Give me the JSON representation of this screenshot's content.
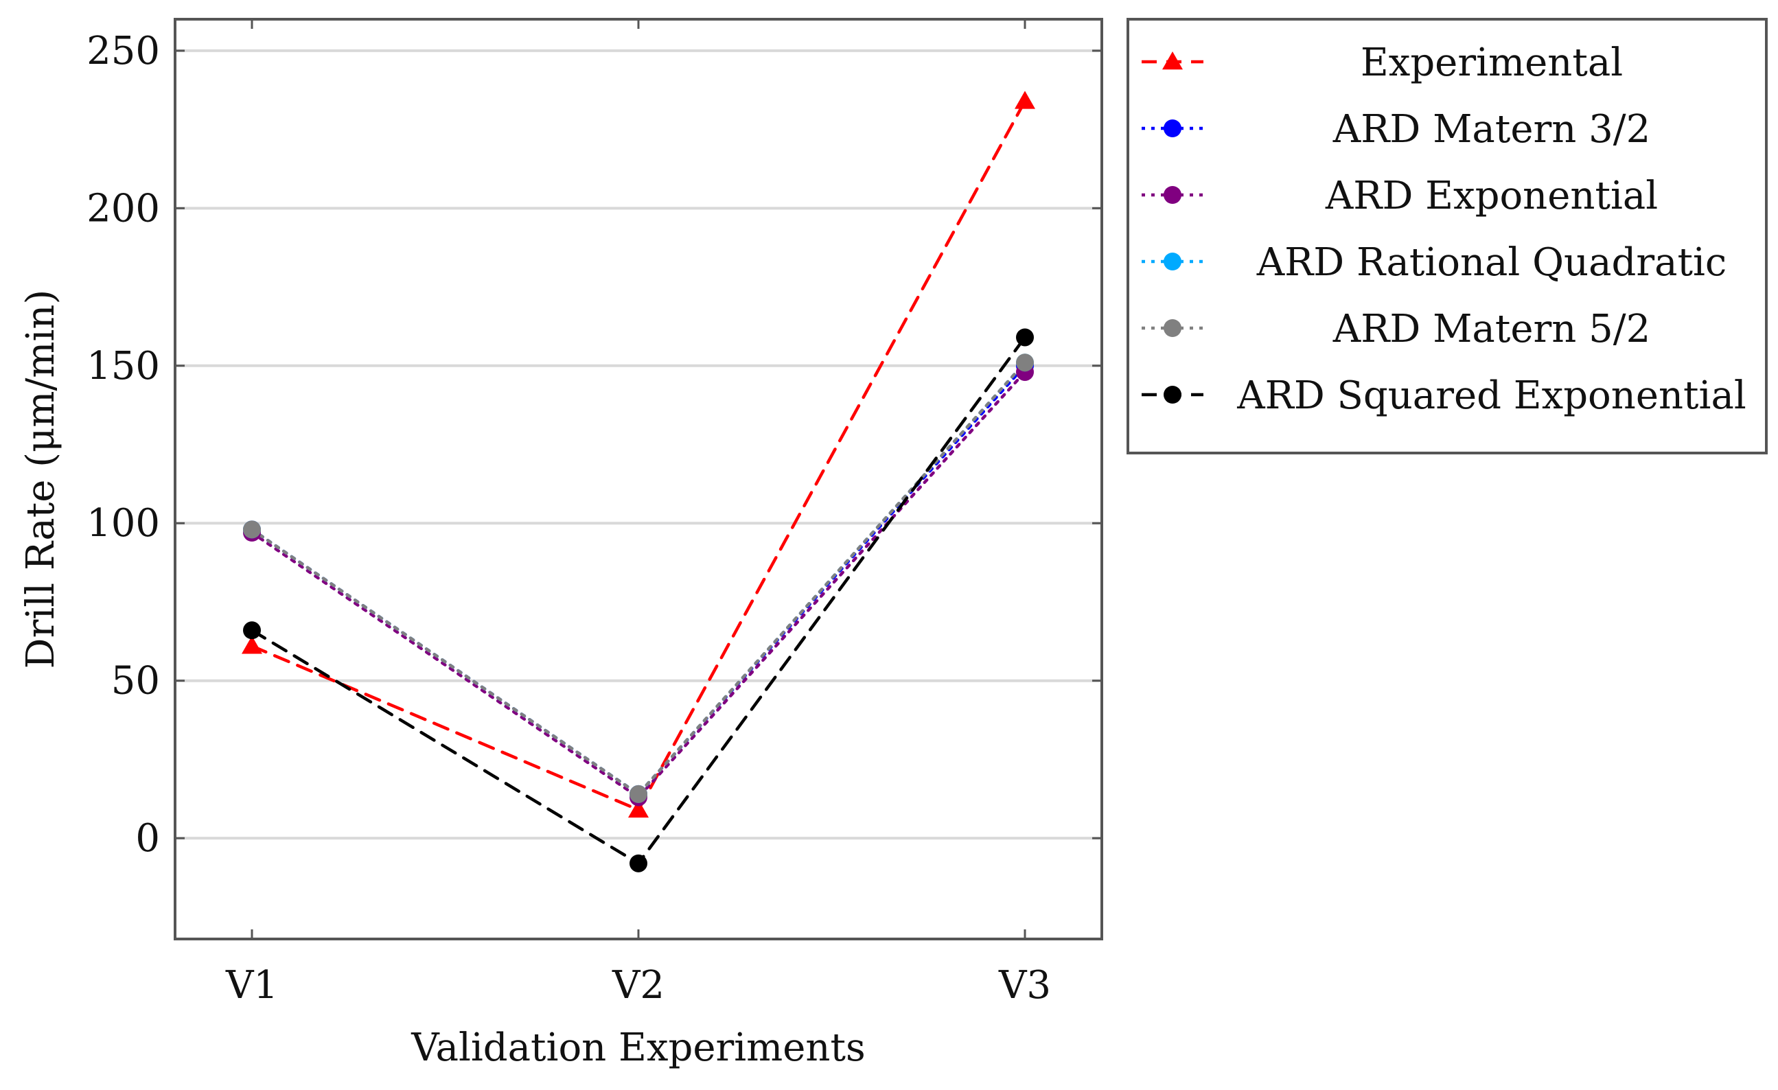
{
  "chart_data": {
    "type": "line",
    "categories": [
      "V1",
      "V2",
      "V3"
    ],
    "xlabel": "Validation Experiments",
    "ylabel": "Drill Rate (μm/min)",
    "ylim": [
      -32,
      260
    ],
    "yticks": [
      0,
      50,
      100,
      150,
      200,
      250
    ],
    "grid": "horizontal",
    "legend_position": "outside-right-top",
    "series": [
      {
        "name": "Experimental",
        "values": [
          61,
          9,
          234
        ],
        "color": "#ff0000",
        "dash": "dashed",
        "marker": "triangle"
      },
      {
        "name": "ARD Matern 3/2",
        "values": [
          98,
          14,
          150
        ],
        "color": "#0000ff",
        "dash": "dotted",
        "marker": "circle"
      },
      {
        "name": "ARD Exponential",
        "values": [
          97,
          13,
          148
        ],
        "color": "#800080",
        "dash": "dotted",
        "marker": "circle"
      },
      {
        "name": "ARD Rational Quadratic",
        "values": [
          98,
          14,
          151
        ],
        "color": "#00aaff",
        "dash": "dotted",
        "marker": "circle"
      },
      {
        "name": "ARD Matern 5/2",
        "values": [
          98,
          14,
          151
        ],
        "color": "#808080",
        "dash": "dotted",
        "marker": "circle"
      },
      {
        "name": "ARD Squared Exponential",
        "values": [
          66,
          -8,
          159
        ],
        "color": "#000000",
        "dash": "dashed",
        "marker": "circle"
      }
    ]
  }
}
